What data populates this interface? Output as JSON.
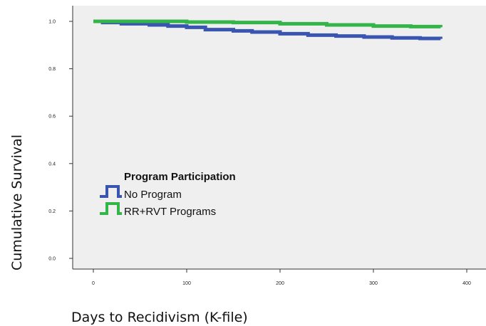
{
  "chart_data": {
    "type": "line",
    "step": true,
    "xlabel": "Days to Recidivism (K-file)",
    "ylabel": "Cumulative Survival",
    "xlim": [
      -15,
      415
    ],
    "ylim": [
      -0.02,
      1.05
    ],
    "xticks": [
      0,
      100,
      200,
      300,
      400
    ],
    "xtick_labels": [
      "0",
      "100",
      "200",
      "300",
      "400"
    ],
    "yticks": [
      0.0,
      0.2,
      0.4,
      0.6,
      0.8,
      1.0
    ],
    "ytick_labels": [
      "0.0",
      "0.2",
      "0.4",
      "0.6",
      "0.8",
      "1.0"
    ],
    "grid": false,
    "legend": {
      "title": "Program Participation",
      "position": "lower-left",
      "entries": [
        "No Program",
        "RR+RVT Programs"
      ]
    },
    "series": [
      {
        "name": "No Program",
        "color": "#3a55b0",
        "x": [
          0,
          10,
          30,
          60,
          80,
          100,
          120,
          150,
          170,
          200,
          230,
          260,
          290,
          320,
          350,
          372
        ],
        "y": [
          1.0,
          0.995,
          0.99,
          0.985,
          0.98,
          0.975,
          0.965,
          0.96,
          0.955,
          0.948,
          0.942,
          0.938,
          0.934,
          0.93,
          0.928,
          0.926
        ]
      },
      {
        "name": "RR+RVT Programs",
        "color": "#33b54a",
        "x": [
          0,
          50,
          100,
          150,
          200,
          250,
          300,
          340,
          372
        ],
        "y": [
          1.0,
          1.0,
          0.997,
          0.995,
          0.99,
          0.985,
          0.98,
          0.978,
          0.975
        ]
      }
    ]
  }
}
